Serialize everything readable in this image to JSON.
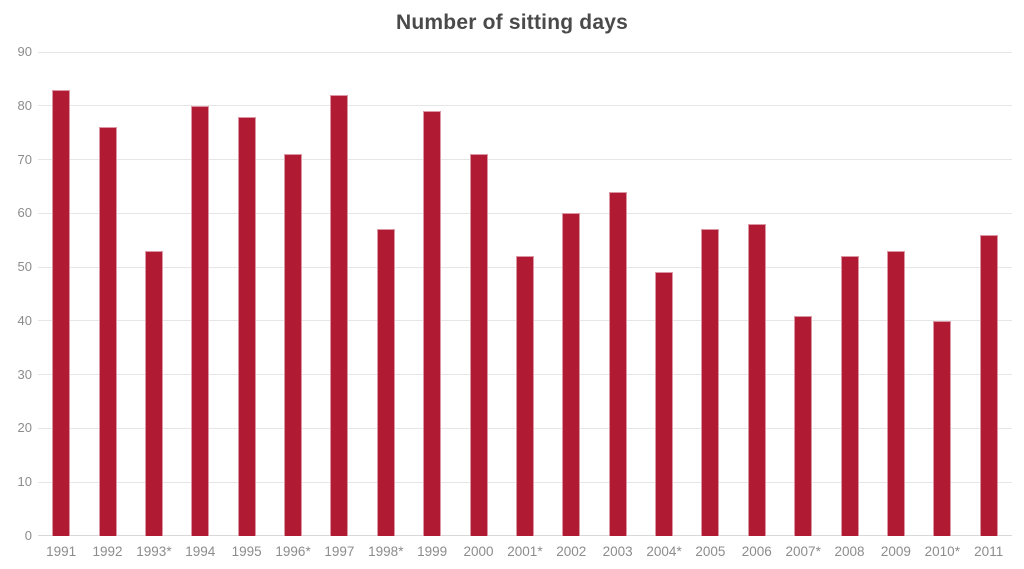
{
  "chart_data": {
    "type": "bar",
    "title": "Number of sitting days",
    "categories": [
      "1991",
      "1992",
      "1993*",
      "1994",
      "1995",
      "1996*",
      "1997",
      "1998*",
      "1999",
      "2000",
      "2001*",
      "2002",
      "2003",
      "2004*",
      "2005",
      "2006",
      "2007*",
      "2008",
      "2009",
      "2010*",
      "2011"
    ],
    "values": [
      83,
      76,
      53,
      80,
      78,
      71,
      82,
      57,
      79,
      71,
      52,
      60,
      64,
      49,
      57,
      58,
      41,
      52,
      53,
      40,
      56
    ],
    "xlabel": "",
    "ylabel": "",
    "ylim": [
      0,
      90
    ],
    "yticks": [
      0,
      10,
      20,
      30,
      40,
      50,
      60,
      70,
      80,
      90
    ],
    "grid": true,
    "legend_position": "none",
    "colors": {
      "bar_fill": "#b01a33",
      "gridline": "#e6e6e6",
      "baseline": "#d8d8d8",
      "axis_label": "#8c8c8c",
      "title": "#4a4a4a"
    }
  }
}
